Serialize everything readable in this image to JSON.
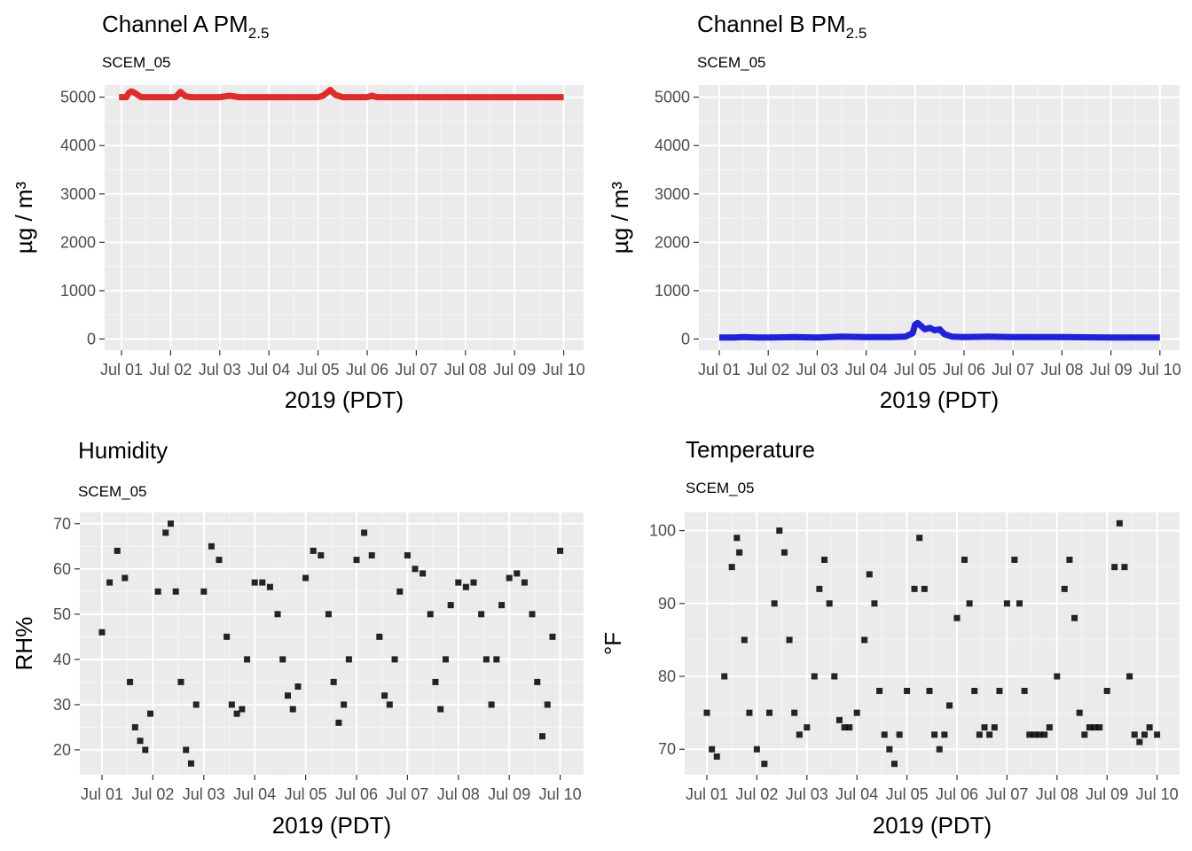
{
  "chart_data": [
    {
      "type": "line",
      "title": "Channel A PM",
      "title_sub": "2.5",
      "subtitle": "SCEM_05",
      "ylabel": "µg / m³",
      "xlabel": "2019 (PDT)",
      "ylim": [
        -230,
        5250
      ],
      "yticks": [
        0,
        1000,
        2000,
        3000,
        4000,
        5000
      ],
      "xticks": [
        "Jul 01",
        "Jul 02",
        "Jul 03",
        "Jul 04",
        "Jul 05",
        "Jul 06",
        "Jul 07",
        "Jul 08",
        "Jul 09",
        "Jul 10"
      ],
      "color": "#E22B28",
      "style": "line",
      "series": [
        {
          "x": [
            -0.05,
            0.1,
            0.15,
            0.2,
            0.25,
            0.4,
            1.0,
            1.1,
            1.2,
            1.3,
            1.4,
            2.0,
            2.2,
            2.4,
            3.0,
            4.0,
            4.1,
            4.2,
            4.25,
            4.35,
            4.5,
            5.0,
            5.1,
            5.2,
            6.0,
            7.0,
            8.0,
            9.0,
            9.0
          ],
          "values": [
            5000,
            5000,
            5090,
            5120,
            5100,
            5000,
            5000,
            5000,
            5110,
            5020,
            5000,
            5000,
            5030,
            5000,
            5000,
            5000,
            5030,
            5110,
            5150,
            5050,
            5000,
            5000,
            5030,
            5000,
            5000,
            5000,
            5000,
            5000,
            5000
          ]
        }
      ]
    },
    {
      "type": "line",
      "title": "Channel B PM",
      "title_sub": "2.5",
      "subtitle": "SCEM_05",
      "ylabel": "µg / m³",
      "xlabel": "2019 (PDT)",
      "ylim": [
        -230,
        5250
      ],
      "yticks": [
        0,
        1000,
        2000,
        3000,
        4000,
        5000
      ],
      "xticks": [
        "Jul 01",
        "Jul 02",
        "Jul 03",
        "Jul 04",
        "Jul 05",
        "Jul 06",
        "Jul 07",
        "Jul 08",
        "Jul 09",
        "Jul 10"
      ],
      "color": "#2020E0",
      "style": "line",
      "series": [
        {
          "x": [
            0.0,
            0.3,
            0.5,
            0.8,
            1.0,
            1.5,
            2.0,
            2.5,
            3.0,
            3.5,
            3.8,
            3.95,
            4.0,
            4.05,
            4.1,
            4.2,
            4.3,
            4.4,
            4.5,
            4.6,
            4.75,
            5.0,
            5.5,
            6.0,
            7.0,
            8.0,
            9.0
          ],
          "values": [
            30,
            30,
            40,
            30,
            30,
            40,
            30,
            50,
            40,
            40,
            50,
            120,
            300,
            330,
            290,
            200,
            230,
            180,
            200,
            100,
            50,
            40,
            50,
            40,
            40,
            30,
            30
          ]
        }
      ]
    },
    {
      "type": "scatter",
      "title": "Humidity",
      "subtitle": "SCEM_05",
      "ylabel": "RH%",
      "xlabel": "2019 (PDT)",
      "ylim": [
        14.5,
        72.5
      ],
      "yticks": [
        20,
        30,
        40,
        50,
        60,
        70
      ],
      "xticks": [
        "Jul 01",
        "Jul 02",
        "Jul 03",
        "Jul 04",
        "Jul 05",
        "Jul 06",
        "Jul 07",
        "Jul 08",
        "Jul 09",
        "Jul 10"
      ],
      "color": "#000000",
      "style": "points",
      "series": [
        {
          "x": [
            0.0,
            0.15,
            0.3,
            0.45,
            0.55,
            0.65,
            0.75,
            0.85,
            0.95,
            1.1,
            1.25,
            1.35,
            1.45,
            1.55,
            1.65,
            1.75,
            1.85,
            2.0,
            2.15,
            2.3,
            2.45,
            2.55,
            2.65,
            2.75,
            2.85,
            3.0,
            3.15,
            3.3,
            3.45,
            3.55,
            3.65,
            3.75,
            3.85,
            4.0,
            4.15,
            4.3,
            4.45,
            4.55,
            4.65,
            4.75,
            4.85,
            5.0,
            5.15,
            5.3,
            5.45,
            5.55,
            5.65,
            5.75,
            5.85,
            6.0,
            6.15,
            6.3,
            6.45,
            6.55,
            6.65,
            6.75,
            6.85,
            7.0,
            7.15,
            7.3,
            7.45,
            7.55,
            7.65,
            7.75,
            7.85,
            8.0,
            8.15,
            8.3,
            8.45,
            8.55,
            8.65,
            8.75,
            8.85,
            9.0
          ],
          "values": [
            46,
            57,
            64,
            58,
            35,
            25,
            22,
            20,
            28,
            55,
            68,
            70,
            55,
            35,
            20,
            17,
            30,
            55,
            65,
            62,
            45,
            30,
            28,
            29,
            40,
            57,
            57,
            56,
            50,
            40,
            32,
            29,
            34,
            58,
            64,
            63,
            50,
            35,
            26,
            30,
            40,
            62,
            68,
            63,
            45,
            32,
            30,
            40,
            55,
            63,
            60,
            59,
            50,
            35,
            29,
            40,
            52,
            57,
            56,
            57,
            50,
            40,
            30,
            40,
            52,
            58,
            59,
            57,
            50,
            35,
            23,
            30,
            45,
            64
          ]
        }
      ]
    },
    {
      "type": "scatter",
      "title": "Temperature",
      "subtitle": "SCEM_05",
      "ylabel": "°F",
      "xlabel": "2019 (PDT)",
      "ylim": [
        66.5,
        102.5
      ],
      "yticks": [
        70,
        80,
        90,
        100
      ],
      "xticks": [
        "Jul 01",
        "Jul 02",
        "Jul 03",
        "Jul 04",
        "Jul 05",
        "Jul 06",
        "Jul 07",
        "Jul 08",
        "Jul 09",
        "Jul 10"
      ],
      "color": "#000000",
      "style": "points",
      "series": [
        {
          "x": [
            0.0,
            0.1,
            0.2,
            0.35,
            0.5,
            0.6,
            0.65,
            0.75,
            0.85,
            1.0,
            1.15,
            1.25,
            1.35,
            1.45,
            1.55,
            1.65,
            1.75,
            1.85,
            2.0,
            2.15,
            2.25,
            2.35,
            2.45,
            2.55,
            2.65,
            2.75,
            2.85,
            3.0,
            3.15,
            3.25,
            3.35,
            3.45,
            3.55,
            3.65,
            3.75,
            3.85,
            4.0,
            4.15,
            4.25,
            4.35,
            4.45,
            4.55,
            4.65,
            4.75,
            4.85,
            5.0,
            5.15,
            5.25,
            5.35,
            5.45,
            5.55,
            5.65,
            5.75,
            5.85,
            6.0,
            6.15,
            6.25,
            6.35,
            6.45,
            6.55,
            6.65,
            6.75,
            6.85,
            7.0,
            7.15,
            7.25,
            7.35,
            7.45,
            7.55,
            7.65,
            7.75,
            7.85,
            8.0,
            8.15,
            8.25,
            8.35,
            8.45,
            8.55,
            8.65,
            8.75,
            8.85,
            9.0
          ],
          "values": [
            75,
            70,
            69,
            80,
            95,
            99,
            97,
            85,
            75,
            70,
            68,
            75,
            90,
            100,
            97,
            85,
            75,
            72,
            73,
            80,
            92,
            96,
            90,
            80,
            74,
            73,
            73,
            75,
            85,
            94,
            90,
            78,
            72,
            70,
            68,
            72,
            78,
            92,
            99,
            92,
            78,
            72,
            70,
            72,
            76,
            88,
            96,
            90,
            78,
            72,
            73,
            72,
            73,
            78,
            90,
            96,
            90,
            78,
            72,
            72,
            72,
            72,
            73,
            80,
            92,
            96,
            88,
            75,
            72,
            73,
            73,
            73,
            78,
            95,
            101,
            95,
            80,
            72,
            71,
            72,
            73,
            72
          ]
        }
      ]
    }
  ]
}
